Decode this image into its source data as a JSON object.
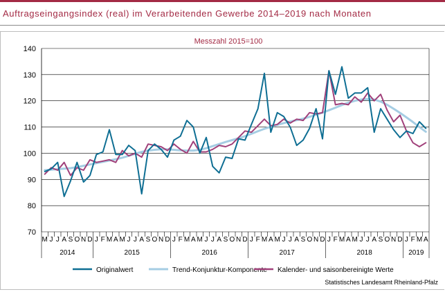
{
  "title": "Auftragseingangsindex (real) im Verarbeitenden Gewerbe 2014–2019 nach Monaten",
  "source": "Statistisches Landesamt Rheinland-Pfalz",
  "colors": {
    "title": "#a32a44",
    "original": "#0e6e93",
    "trend": "#a5cde3",
    "adjusted": "#a0407a",
    "grid": "#000000"
  },
  "chart_data": {
    "type": "line",
    "subtitle": "Messzahl 2015=100",
    "ylim": [
      70,
      140
    ],
    "yticks": [
      70,
      80,
      90,
      100,
      110,
      120,
      130,
      140
    ],
    "grid": "horizontal",
    "legend_position": "bottom",
    "month_labels": [
      "M",
      "J",
      "J",
      "A",
      "S",
      "O",
      "N",
      "D",
      "J",
      "F",
      "M",
      "A",
      "M",
      "J",
      "J",
      "A",
      "S",
      "O",
      "N",
      "D",
      "J",
      "F",
      "M",
      "A",
      "M",
      "J",
      "J",
      "A",
      "S",
      "O",
      "N",
      "D",
      "J",
      "F",
      "M",
      "A",
      "M",
      "J",
      "J",
      "A",
      "S",
      "O",
      "N",
      "D",
      "J",
      "F",
      "M",
      "A",
      "M",
      "J",
      "J",
      "A",
      "S",
      "O",
      "N",
      "D",
      "J",
      "F",
      "M",
      "A"
    ],
    "years": [
      {
        "label": "2014",
        "start": 0,
        "count": 8
      },
      {
        "label": "2015",
        "start": 8,
        "count": 12
      },
      {
        "label": "2016",
        "start": 20,
        "count": 12
      },
      {
        "label": "2017",
        "start": 32,
        "count": 12
      },
      {
        "label": "2018",
        "start": 44,
        "count": 12
      },
      {
        "label": "2019",
        "start": 56,
        "count": 4
      }
    ],
    "series": [
      {
        "name": "Originalwert",
        "color": "#0e6e93",
        "values": [
          93,
          94,
          96.5,
          83.5,
          89.5,
          96.5,
          89,
          91.5,
          99.5,
          100.5,
          109,
          99.5,
          99.5,
          103,
          101,
          84.5,
          101,
          103.5,
          101.5,
          98.5,
          105,
          106.5,
          112.5,
          110,
          100,
          106,
          95,
          92.5,
          98.5,
          98,
          105.5,
          105,
          111,
          117,
          130.5,
          108,
          115.5,
          114,
          110,
          103,
          105,
          109.5,
          117,
          105.5,
          131.5,
          122.5,
          133,
          121,
          123,
          123,
          125,
          108,
          117,
          113,
          109,
          106,
          108.5,
          107.5,
          112,
          109.5
        ]
      },
      {
        "name": "Trend-Konjunktur-Komponente",
        "color": "#a5cde3",
        "values": [
          93.5,
          93.7,
          93.9,
          94.1,
          94.3,
          94.7,
          95.2,
          95.7,
          96.2,
          96.7,
          97.2,
          97.7,
          98.3,
          99,
          99.8,
          100.5,
          101,
          101.3,
          101.5,
          101.5,
          101.3,
          101.1,
          101,
          101,
          101.3,
          101.9,
          102.7,
          103.5,
          104.3,
          105,
          105.7,
          106.5,
          107.4,
          108.4,
          109.3,
          110.1,
          110.8,
          111.5,
          112.1,
          112.6,
          113.2,
          113.9,
          114.7,
          115.5,
          116.4,
          117.4,
          118.4,
          119.3,
          120,
          120.5,
          120.7,
          120.5,
          119.7,
          118.5,
          117,
          115.4,
          113.7,
          111.9,
          110,
          108.2
        ]
      },
      {
        "name": "Kalender- und saisonbereinigte Werte",
        "color": "#a0407a",
        "values": [
          92,
          94.5,
          93.5,
          96.5,
          91.5,
          94.5,
          93.5,
          97.5,
          96.5,
          97,
          97.5,
          96.5,
          101,
          99,
          100,
          98.5,
          103.5,
          103,
          102.5,
          101,
          103.5,
          101.5,
          100,
          104.5,
          100.5,
          100.5,
          101.5,
          103,
          102.5,
          103.5,
          106,
          108.5,
          108,
          110.5,
          113,
          110.5,
          111,
          113,
          111.5,
          113,
          112.5,
          115.5,
          115,
          115.5,
          131.5,
          118.5,
          119,
          118.5,
          121.5,
          119.5,
          123,
          120,
          122.5,
          116.5,
          112,
          114.5,
          108.5,
          104,
          102.5,
          104
        ]
      }
    ]
  }
}
